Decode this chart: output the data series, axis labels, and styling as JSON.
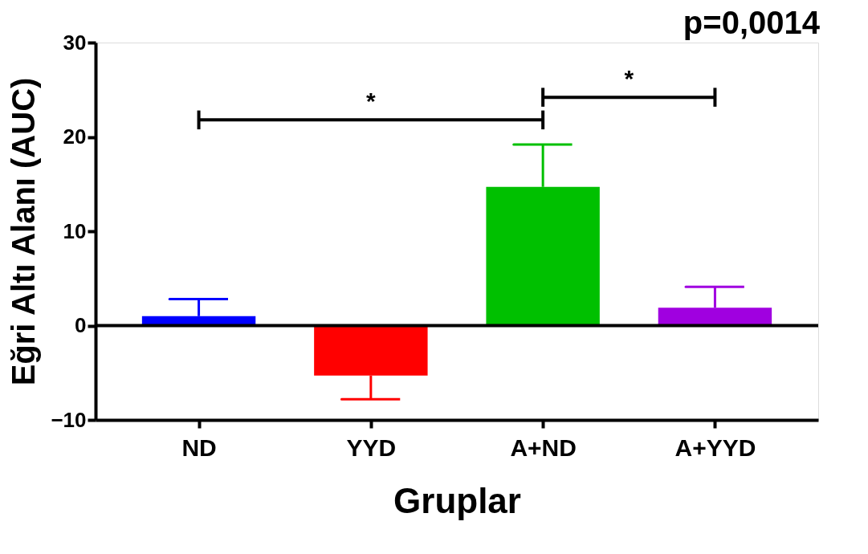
{
  "chart_data": {
    "type": "bar",
    "title": "p=0,0014",
    "xlabel": "Gruplar",
    "ylabel": "Eğri Altı Alanı (AUC)",
    "categories": [
      "ND",
      "YYD",
      "A+ND",
      "A+YYD"
    ],
    "values": [
      1.0,
      -5.3,
      14.7,
      1.9
    ],
    "colors": [
      "#0000ff",
      "#ff0000",
      "#00c000",
      "#a000e0"
    ],
    "errors": [
      [
        1.0,
        2.8
      ],
      [
        -7.8,
        -5.3
      ],
      [
        14.7,
        19.2
      ],
      [
        1.9,
        4.1
      ]
    ],
    "ylim": [
      -10,
      30
    ],
    "yticks": [
      -10,
      0,
      10,
      20,
      30
    ],
    "ref_lines": [
      {
        "axis": "y",
        "value": 0,
        "color": "#000000"
      }
    ],
    "annotations": [
      "*",
      "*"
    ],
    "grid": false
  }
}
